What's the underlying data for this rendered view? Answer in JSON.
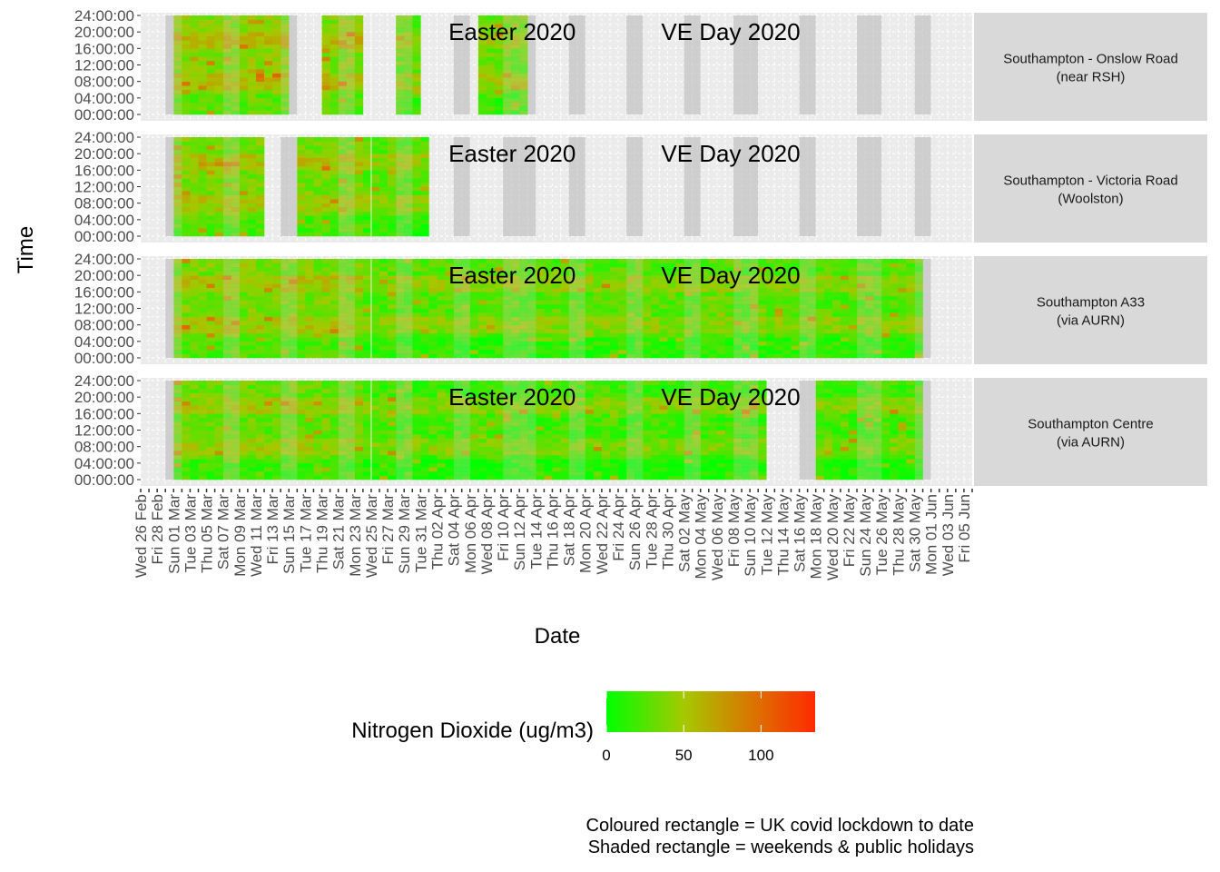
{
  "chart_data": {
    "type": "heatmap",
    "xlabel": "Date",
    "ylabel": "Time",
    "x_range": [
      "2020-02-26",
      "2020-06-06"
    ],
    "y_ticks": [
      "00:00:00",
      "04:00:00",
      "08:00:00",
      "12:00:00",
      "16:00:00",
      "20:00:00",
      "24:00:00"
    ],
    "x_ticks": [
      "Wed 26 Feb",
      "Fri 28 Feb",
      "Sun 01 Mar",
      "Tue 03 Mar",
      "Thu 05 Mar",
      "Sat 07 Mar",
      "Mon 09 Mar",
      "Wed 11 Mar",
      "Fri 13 Mar",
      "Sun 15 Mar",
      "Tue 17 Mar",
      "Thu 19 Mar",
      "Sat 21 Mar",
      "Mon 23 Mar",
      "Wed 25 Mar",
      "Fri 27 Mar",
      "Sun 29 Mar",
      "Tue 31 Mar",
      "Thu 02 Apr",
      "Sat 04 Apr",
      "Mon 06 Apr",
      "Wed 08 Apr",
      "Fri 10 Apr",
      "Sun 12 Apr",
      "Tue 14 Apr",
      "Thu 16 Apr",
      "Sat 18 Apr",
      "Mon 20 Apr",
      "Wed 22 Apr",
      "Fri 24 Apr",
      "Sun 26 Apr",
      "Tue 28 Apr",
      "Thu 30 Apr",
      "Sat 02 May",
      "Mon 04 May",
      "Wed 06 May",
      "Fri 08 May",
      "Sun 10 May",
      "Tue 12 May",
      "Thu 14 May",
      "Sat 16 May",
      "Mon 18 May",
      "Wed 20 May",
      "Fri 22 May",
      "Sun 24 May",
      "Tue 26 May",
      "Thu 28 May",
      "Sat 30 May",
      "Mon 01 Jun",
      "Wed 03 Jun",
      "Fri 05 Jun"
    ],
    "annotations": [
      {
        "label": "Easter 2020",
        "date": "2020-04-12"
      },
      {
        "label": "VE Day 2020",
        "date": "2020-05-08"
      }
    ],
    "lockdown_start": "2020-03-23",
    "shaded_days": [
      "2020-02-29",
      "2020-03-01",
      "2020-03-07",
      "2020-03-08",
      "2020-03-14",
      "2020-03-15",
      "2020-03-21",
      "2020-03-22",
      "2020-03-28",
      "2020-03-29",
      "2020-04-04",
      "2020-04-05",
      "2020-04-10",
      "2020-04-11",
      "2020-04-12",
      "2020-04-13",
      "2020-04-18",
      "2020-04-19",
      "2020-04-25",
      "2020-04-26",
      "2020-05-02",
      "2020-05-03",
      "2020-05-08",
      "2020-05-09",
      "2020-05-10",
      "2020-05-16",
      "2020-05-17",
      "2020-05-23",
      "2020-05-24",
      "2020-05-25",
      "2020-05-30",
      "2020-05-31"
    ],
    "panels": [
      {
        "site": "Southampton - Onslow Road\n(near RSH)",
        "data_spans": [
          [
            "2020-03-01",
            "2020-03-15"
          ],
          [
            "2020-03-19",
            "2020-03-24"
          ],
          [
            "2020-03-28",
            "2020-03-31"
          ],
          [
            "2020-04-07",
            "2020-04-13"
          ]
        ],
        "typical_no2": 40
      },
      {
        "site": "Southampton - Victoria Road\n(Woolston)",
        "data_spans": [
          [
            "2020-03-01",
            "2020-03-12"
          ],
          [
            "2020-03-16",
            "2020-03-31"
          ],
          [
            "2020-03-31",
            "2020-04-01"
          ]
        ],
        "typical_no2": 35
      },
      {
        "site": "Southampton A33\n(via AURN)",
        "data_spans": [
          [
            "2020-03-01",
            "2020-05-31"
          ]
        ],
        "typical_no2": 35
      },
      {
        "site": "Southampton Centre\n(via AURN)",
        "data_spans": [
          [
            "2020-03-01",
            "2020-05-12"
          ],
          [
            "2020-05-18",
            "2020-05-31"
          ]
        ],
        "typical_no2": 30
      }
    ],
    "colorbar": {
      "title": "Nitrogen Dioxide (ug/m3)",
      "min": 0,
      "max": 135,
      "ticks": [
        0,
        50,
        100
      ],
      "colors": [
        "#00ff00",
        "#ff2a00"
      ]
    }
  },
  "legend": {
    "title": "Nitrogen Dioxide (ug/m3)",
    "ticks": [
      "0",
      "50",
      "100"
    ]
  },
  "caption": {
    "line1": "Coloured rectangle = UK covid lockdown to date",
    "line2": "Shaded rectangle = weekends & public holidays"
  },
  "labels": {
    "xlabel": "Date",
    "ylabel": "Time"
  }
}
